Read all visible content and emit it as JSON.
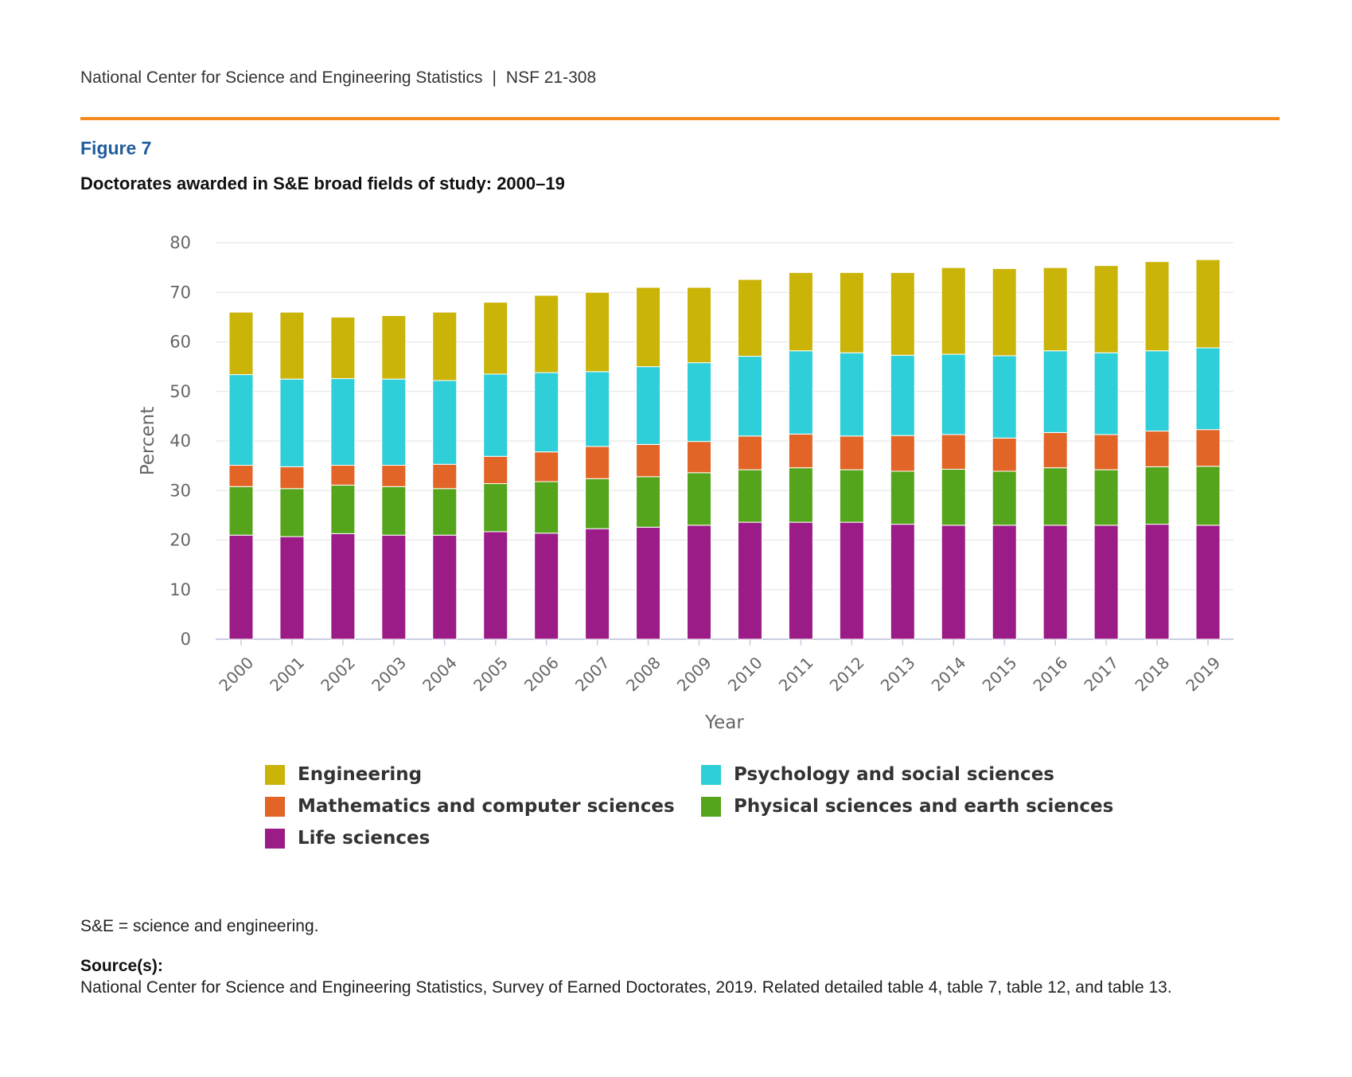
{
  "header": {
    "org": "National Center for Science and Engineering Statistics",
    "separator": "|",
    "report": "NSF 21-308"
  },
  "figure": {
    "label": "Figure 7",
    "title": "Doctorates awarded in S&E broad fields of study: 2000–19"
  },
  "notes": {
    "abbrev": "S&E = science and engineering.",
    "source_label": "Source(s):",
    "source_text": "National Center for Science and Engineering Statistics, Survey of Earned Doctorates, 2019. Related detailed table 4, table 7, table 12, and table 13."
  },
  "colors": {
    "rule": "#f38b1c",
    "figure_label": "#1f5d9c"
  },
  "chart_data": {
    "type": "bar",
    "stacked": true,
    "xlabel": "Year",
    "ylabel": "Percent",
    "ylim": [
      0,
      80
    ],
    "yticks": [
      0,
      10,
      20,
      30,
      40,
      50,
      60,
      70,
      80
    ],
    "grid": true,
    "legend_position": "bottom",
    "categories": [
      "2000",
      "2001",
      "2002",
      "2003",
      "2004",
      "2005",
      "2006",
      "2007",
      "2008",
      "2009",
      "2010",
      "2011",
      "2012",
      "2013",
      "2014",
      "2015",
      "2016",
      "2017",
      "2018",
      "2019"
    ],
    "series": [
      {
        "name": "Life sciences",
        "color": "#9b1c87",
        "values": [
          21.0,
          20.7,
          21.3,
          21.0,
          21.0,
          21.7,
          21.4,
          22.3,
          22.6,
          23.0,
          23.6,
          23.6,
          23.6,
          23.2,
          23.0,
          23.0,
          23.0,
          23.0,
          23.2,
          23.0
        ]
      },
      {
        "name": "Physical sciences and earth sciences",
        "color": "#55a51c",
        "values": [
          9.8,
          9.7,
          9.8,
          9.8,
          9.4,
          9.7,
          10.4,
          10.1,
          10.2,
          10.6,
          10.6,
          11.0,
          10.6,
          10.7,
          11.3,
          10.9,
          11.6,
          11.2,
          11.6,
          11.9
        ]
      },
      {
        "name": "Mathematics and computer sciences",
        "color": "#e26426",
        "values": [
          4.3,
          4.4,
          4.0,
          4.3,
          4.9,
          5.5,
          6.0,
          6.5,
          6.5,
          6.3,
          6.8,
          6.8,
          6.8,
          7.2,
          7.0,
          6.7,
          7.1,
          7.1,
          7.2,
          7.4
        ]
      },
      {
        "name": "Psychology and social sciences",
        "color": "#2ecfd9",
        "values": [
          18.3,
          17.7,
          17.5,
          17.4,
          16.9,
          16.6,
          16.0,
          15.1,
          15.7,
          15.9,
          16.1,
          16.8,
          16.8,
          16.2,
          16.2,
          16.6,
          16.5,
          16.5,
          16.2,
          16.5
        ]
      },
      {
        "name": "Engineering",
        "color": "#c9b407",
        "values": [
          12.6,
          13.5,
          12.4,
          12.8,
          13.8,
          14.5,
          15.6,
          16.0,
          16.0,
          15.2,
          15.5,
          15.8,
          16.2,
          16.7,
          17.5,
          17.6,
          16.8,
          17.6,
          18.0,
          17.8
        ]
      }
    ],
    "legend_order": [
      "Engineering",
      "Psychology and social sciences",
      "Mathematics and computer sciences",
      "Physical sciences and earth sciences",
      "Life sciences"
    ]
  }
}
